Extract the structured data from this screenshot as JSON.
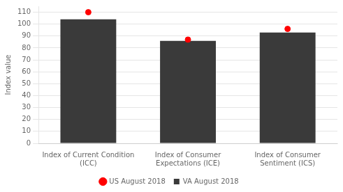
{
  "chart_data": {
    "type": "bar",
    "categories": [
      "Index of Current Condition\n(ICC)",
      "Index of Consumer\nExpectations (ICE)",
      "Index of Consumer\nSentiment (ICS)"
    ],
    "series": [
      {
        "name": "VA August 2018",
        "type": "bar",
        "color": "#3a3a3a",
        "values": [
          104,
          86,
          93
        ]
      },
      {
        "name": "US August 2018",
        "type": "scatter",
        "marker": "circle",
        "color": "#ff0000",
        "values": [
          110,
          87,
          96
        ]
      }
    ],
    "ylabel": "Index value",
    "ylim": [
      0,
      115
    ],
    "yticks": [
      0,
      10,
      20,
      30,
      40,
      50,
      60,
      70,
      80,
      90,
      100,
      110
    ],
    "grid": true,
    "legend": "bottom"
  }
}
